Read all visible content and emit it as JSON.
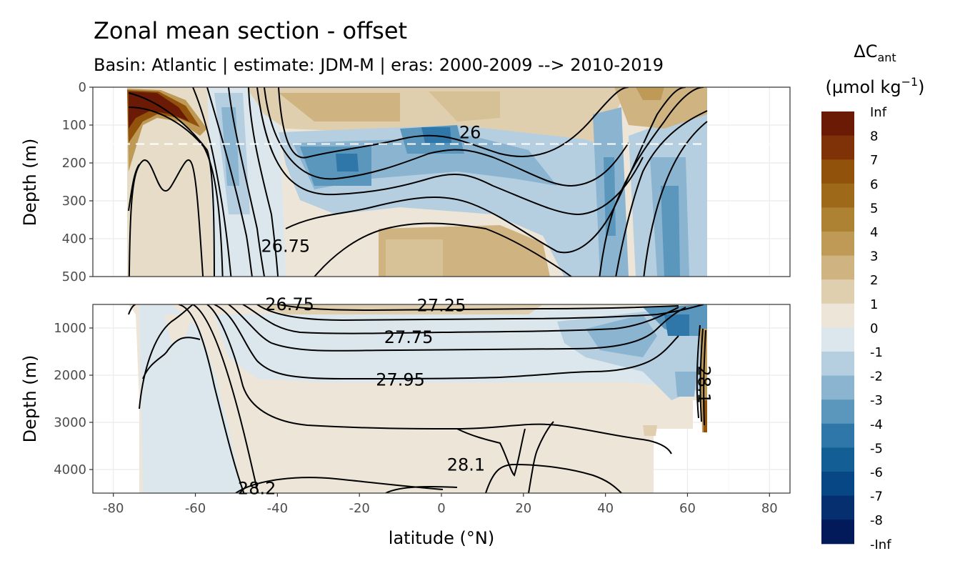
{
  "chart_data": {
    "type": "heatmap",
    "title": "Zonal mean section - offset",
    "subtitle": "Basin: Atlantic | estimate: JDM-M | eras: 2000-2009 --> 2010-2019",
    "xlabel": "latitude (°N)",
    "ylabel": "Depth (m)",
    "xlim": [
      -85,
      85
    ],
    "x_ticks": [
      -80,
      -60,
      -40,
      -20,
      0,
      20,
      40,
      60,
      80
    ],
    "panels": [
      {
        "name": "upper",
        "ylim": [
          0,
          500
        ],
        "y_ticks": [
          0,
          100,
          200,
          300,
          400,
          500
        ],
        "reference_line_depth": 150
      },
      {
        "name": "lower",
        "ylim": [
          500,
          4500
        ],
        "y_ticks": [
          1000,
          2000,
          3000,
          4000
        ]
      }
    ],
    "colorbar": {
      "title_prefix": "ΔC",
      "title_sub": "ant",
      "unit_prefix": "(µmol kg",
      "unit_sup": "−1",
      "unit_suffix": ")",
      "breaks": [
        "Inf",
        "8",
        "7",
        "6",
        "5",
        "4",
        "3",
        "2",
        "1",
        "0",
        "-1",
        "-2",
        "-3",
        "-4",
        "-5",
        "-6",
        "-7",
        "-8",
        "-Inf"
      ],
      "colors": [
        "#6a1a05",
        "#7f3107",
        "#91520b",
        "#9e6919",
        "#ad8232",
        "#bf9a56",
        "#cfb482",
        "#e0cfae",
        "#ede6d8",
        "#dce7ed",
        "#b6cfe0",
        "#8ab4d0",
        "#5b96bd",
        "#2f77a8",
        "#125e95",
        "#084785",
        "#062f70",
        "#021a5a"
      ]
    },
    "contour_labels": [
      {
        "panel": "upper",
        "text": "26",
        "lat": 7,
        "depth": 120
      },
      {
        "panel": "upper",
        "text": "26.75",
        "lat": -38,
        "depth": 420
      },
      {
        "panel": "lower",
        "text": "26.75",
        "lat": -37,
        "depth": 500
      },
      {
        "panel": "lower",
        "text": "27.25",
        "lat": 0,
        "depth": 520
      },
      {
        "panel": "lower",
        "text": "27.75",
        "lat": -8,
        "depth": 1200
      },
      {
        "panel": "lower",
        "text": "27.95",
        "lat": -10,
        "depth": 2100
      },
      {
        "panel": "lower",
        "text": "28.1",
        "lat": 6,
        "depth": 3900
      },
      {
        "panel": "lower",
        "text": "28.2",
        "lat": -45,
        "depth": 4400
      },
      {
        "panel": "lower",
        "text": "28.1",
        "lat": 64,
        "depth": 2200
      }
    ]
  }
}
